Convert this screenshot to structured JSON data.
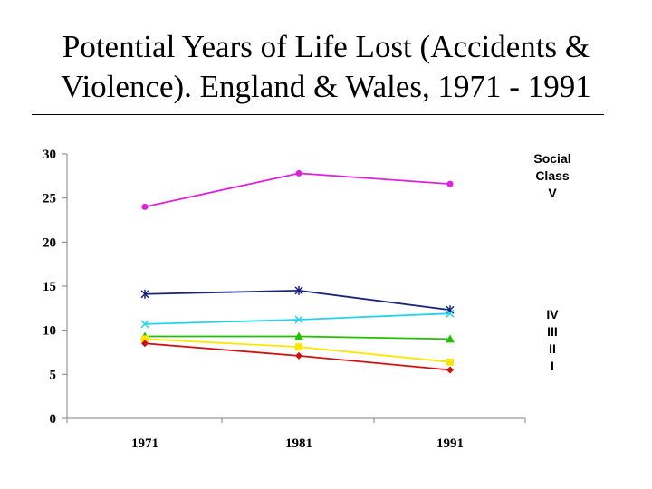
{
  "title_line1": "Potential Years of Life Lost (Accidents &",
  "title_line2": "Violence). England & Wales, 1971 - 1991",
  "chart_data": {
    "type": "line",
    "x": [
      "1971",
      "1981",
      "1991"
    ],
    "ylim": [
      0,
      30
    ],
    "yticks": [
      0,
      5,
      10,
      15,
      20,
      25,
      30
    ],
    "grid": false,
    "series": [
      {
        "label": "Social Class V",
        "values": [
          24.0,
          27.8,
          26.6
        ],
        "color": "#e020e0",
        "marker": "circle"
      },
      {
        "label": "IV",
        "values": [
          14.1,
          14.5,
          12.3
        ],
        "color": "#1a237e",
        "marker": "star"
      },
      {
        "label": "III",
        "values": [
          10.7,
          11.2,
          11.9
        ],
        "color": "#22d3ee",
        "marker": "x"
      },
      {
        "label": "",
        "values": [
          9.3,
          9.3,
          9.0
        ],
        "color": "#22c000",
        "marker": "triangle"
      },
      {
        "label": "II",
        "values": [
          9.0,
          8.1,
          6.4
        ],
        "color": "#ffe600",
        "marker": "square"
      },
      {
        "label": "I",
        "values": [
          8.5,
          7.1,
          5.5
        ],
        "color": "#d01010",
        "marker": "diamond"
      }
    ],
    "legend_labels": [
      {
        "text": "Social",
        "anchor": "series-0-label-1"
      },
      {
        "text": "Class",
        "anchor": "series-0-label-2"
      },
      {
        "text": "V",
        "anchor": "series-0-label-3"
      },
      {
        "text": "IV",
        "anchor": "series-1"
      },
      {
        "text": "III",
        "anchor": "series-2"
      },
      {
        "text": "II",
        "anchor": "series-4"
      },
      {
        "text": "I",
        "anchor": "series-5"
      }
    ]
  }
}
